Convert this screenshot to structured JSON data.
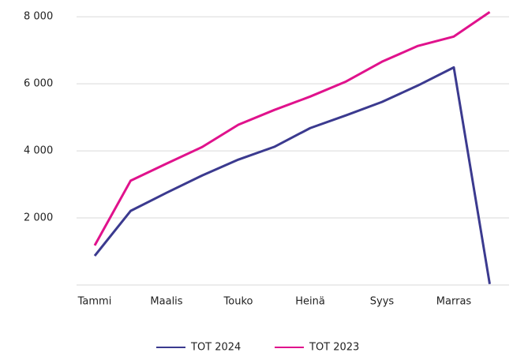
{
  "chart_data": {
    "type": "line",
    "categories": [
      "Tammi",
      null,
      "Maalis",
      null,
      "Touko",
      null,
      "Heinä",
      null,
      "Syys",
      null,
      "Marras",
      null
    ],
    "series": [
      {
        "name": "TOT 2024",
        "color": "#3b3a8f",
        "values": [
          870,
          2210,
          2750,
          3270,
          3740,
          4120,
          4680,
          5060,
          5460,
          5950,
          6490,
          30
        ]
      },
      {
        "name": "TOT 2023",
        "color": "#e0128c",
        "values": [
          1180,
          3110,
          3620,
          4120,
          4780,
          5220,
          5620,
          6070,
          6660,
          7130,
          7410,
          8140
        ]
      }
    ],
    "ylim": [
      0,
      8500
    ],
    "yticks": [
      {
        "value": 2000,
        "label": "2 000"
      },
      {
        "value": 4000,
        "label": "4 000"
      },
      {
        "value": 6000,
        "label": "6 000"
      },
      {
        "value": 8000,
        "label": "8 000"
      }
    ],
    "grid": true,
    "legend": "bottom"
  }
}
